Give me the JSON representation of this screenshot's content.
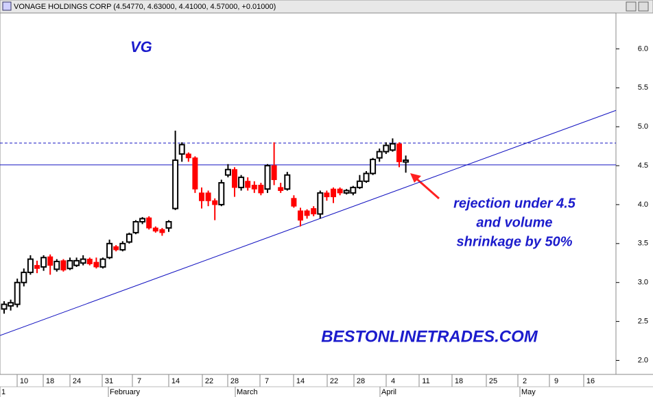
{
  "chart_data": {
    "type": "candlestick",
    "title": "VONAGE HOLDINGS CORP (4.54770, 4.63000, 4.41000, 4.57000, +0.01000)",
    "symbol_label": "VG",
    "annotation_lines": [
      "rejection under 4.5",
      "and volume",
      "shrinkage by 50%"
    ],
    "watermark": "BESTONLINETRADES.COM",
    "open": [
      2.66,
      2.7,
      2.72,
      3.0,
      3.13,
      3.22,
      3.2,
      3.33,
      3.17,
      3.28,
      3.18,
      3.22,
      3.25,
      3.3,
      3.26,
      3.2,
      3.32,
      3.46,
      3.42,
      3.52,
      3.64,
      3.78,
      3.83,
      3.7,
      3.68,
      3.7,
      3.95,
      4.65,
      4.65,
      4.6,
      4.15,
      4.15,
      4.05,
      4.0,
      4.38,
      4.45,
      4.22,
      4.3,
      4.25,
      4.25,
      4.2,
      4.5,
      4.22,
      4.2,
      4.08,
      3.92,
      3.92,
      3.95,
      3.88,
      4.15,
      4.2,
      4.2,
      4.15,
      4.15,
      4.22,
      4.3,
      4.4,
      4.6,
      4.68,
      4.7,
      4.78,
      4.5477
    ],
    "high": [
      2.76,
      2.78,
      3.05,
      3.18,
      3.35,
      3.28,
      3.35,
      3.36,
      3.3,
      3.3,
      3.32,
      3.32,
      3.35,
      3.32,
      3.32,
      3.32,
      3.55,
      3.48,
      3.53,
      3.64,
      3.8,
      3.84,
      3.85,
      3.72,
      3.7,
      3.8,
      4.95,
      4.8,
      4.67,
      4.62,
      4.22,
      4.18,
      4.08,
      4.32,
      4.52,
      4.48,
      4.38,
      4.35,
      4.3,
      4.28,
      4.52,
      4.8,
      4.28,
      4.42,
      4.12,
      3.96,
      3.94,
      3.98,
      4.18,
      4.18,
      4.22,
      4.22,
      4.2,
      4.24,
      4.38,
      4.43,
      4.6,
      4.72,
      4.8,
      4.85,
      4.8,
      4.63
    ],
    "low": [
      2.6,
      2.64,
      2.68,
      2.95,
      3.1,
      3.12,
      3.15,
      3.1,
      3.14,
      3.14,
      3.16,
      3.2,
      3.22,
      3.22,
      3.18,
      3.18,
      3.3,
      3.4,
      3.4,
      3.5,
      3.62,
      3.75,
      3.68,
      3.64,
      3.6,
      3.65,
      3.93,
      4.55,
      4.55,
      4.15,
      3.95,
      3.98,
      3.8,
      3.98,
      4.35,
      4.1,
      4.18,
      4.18,
      4.15,
      4.12,
      4.15,
      4.25,
      4.15,
      4.18,
      3.96,
      3.72,
      3.82,
      3.85,
      3.82,
      4.05,
      4.02,
      4.12,
      4.13,
      4.12,
      4.2,
      4.28,
      4.38,
      4.55,
      4.65,
      4.68,
      4.48,
      4.41
    ],
    "close": [
      2.72,
      2.74,
      3.0,
      3.13,
      3.3,
      3.18,
      3.32,
      3.22,
      3.27,
      3.16,
      3.28,
      3.28,
      3.3,
      3.24,
      3.2,
      3.3,
      3.5,
      3.42,
      3.5,
      3.62,
      3.78,
      3.82,
      3.7,
      3.66,
      3.64,
      3.78,
      4.57,
      4.77,
      4.6,
      4.2,
      4.05,
      4.05,
      4.0,
      4.28,
      4.45,
      4.22,
      4.35,
      4.22,
      4.2,
      4.15,
      4.5,
      4.32,
      4.18,
      4.38,
      3.98,
      3.8,
      3.86,
      3.88,
      4.15,
      4.1,
      4.1,
      4.15,
      4.18,
      4.22,
      4.3,
      4.4,
      4.58,
      4.68,
      4.76,
      4.78,
      4.55,
      4.57
    ],
    "up_color": "#000000",
    "down_color": "#ff0000",
    "hlines": [
      {
        "value": 4.79,
        "style": "dashed"
      },
      {
        "value": 4.51,
        "style": "solid"
      }
    ],
    "trendline": [
      2.32,
      5.21
    ],
    "ylim": [
      1.82,
      6.46
    ],
    "yticks": [
      {
        "value": 2,
        "label": "2.0"
      },
      2.5,
      {
        "value": 3,
        "label": "3.0"
      },
      3.5,
      {
        "value": 4,
        "label": "4.0"
      },
      4.5,
      {
        "value": 5,
        "label": "5.0"
      },
      5.5,
      {
        "value": 6,
        "label": "6.0"
      }
    ],
    "day_labels": [
      "10",
      "18",
      "24",
      "31",
      "7",
      "14",
      "22",
      "28",
      "7",
      "14",
      "22",
      "28",
      "4",
      "11",
      "18",
      "25",
      "2",
      "9",
      "16"
    ],
    "month_labels": [
      "1",
      "February",
      "March",
      "April",
      "May"
    ]
  }
}
